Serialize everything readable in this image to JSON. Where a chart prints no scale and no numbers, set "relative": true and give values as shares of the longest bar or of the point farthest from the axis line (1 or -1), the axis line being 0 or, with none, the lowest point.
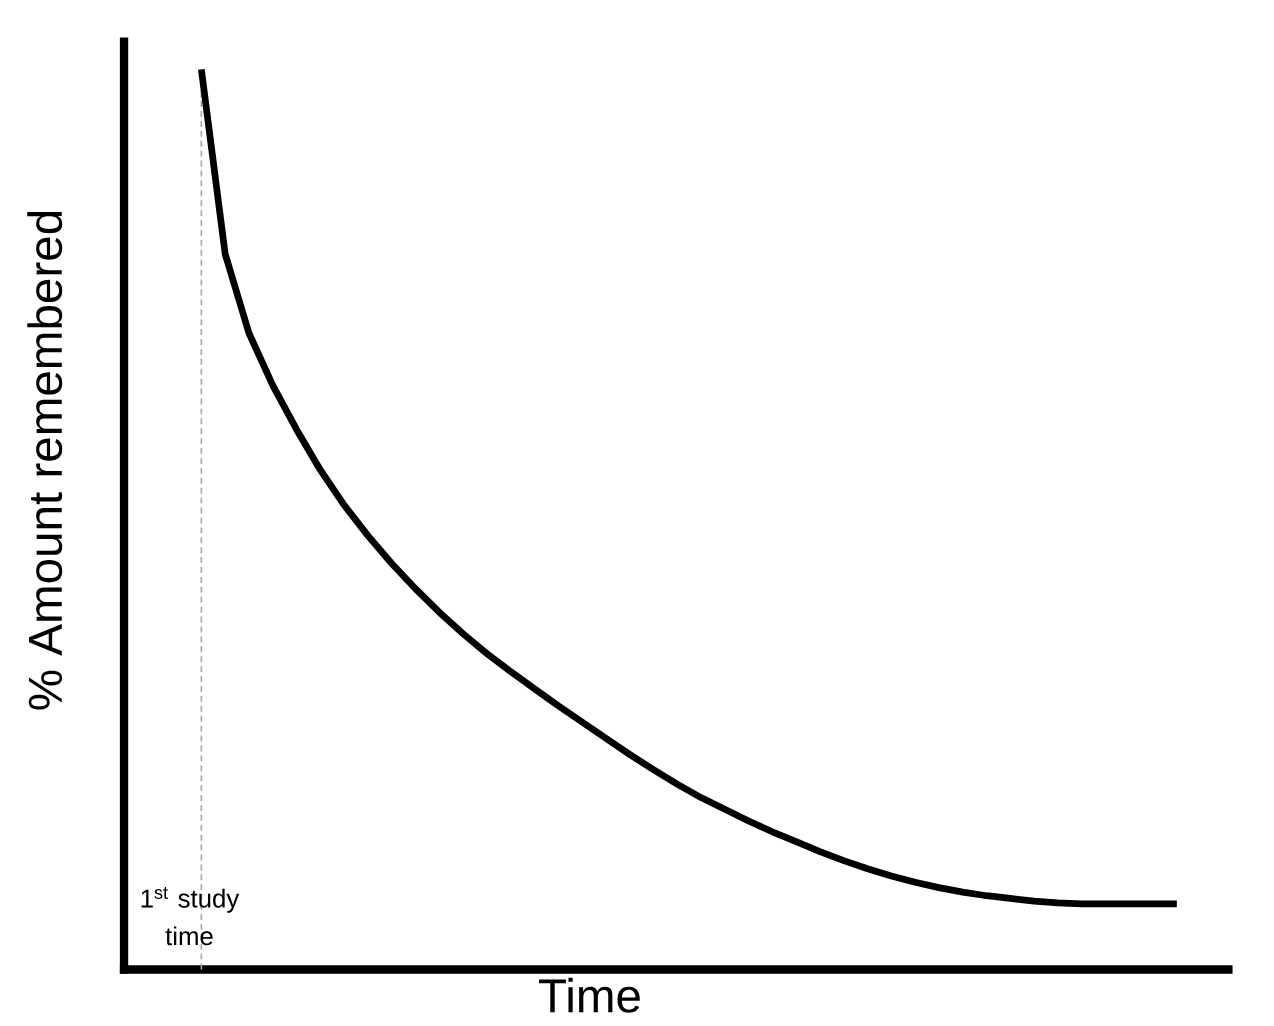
{
  "chart_data": {
    "type": "line",
    "relative": true,
    "xlabel": "Time",
    "ylabel": "% Amount remembered",
    "categories": [
      null,
      null,
      null,
      null,
      null,
      null,
      null,
      null,
      null,
      null,
      null,
      null,
      null,
      null,
      null,
      null,
      null,
      null,
      null,
      null,
      null,
      null,
      null,
      null,
      null,
      null,
      null,
      null,
      null,
      null,
      null,
      null,
      null,
      null,
      null,
      null,
      null,
      null,
      null,
      null,
      null,
      null
    ],
    "series": [
      {
        "color": "#000000",
        "values": [
          1.0,
          0.795,
          0.707,
          0.649,
          0.6,
          0.555,
          0.516,
          0.482,
          0.451,
          0.423,
          0.397,
          0.373,
          0.351,
          0.331,
          0.312,
          0.293,
          0.275,
          0.257,
          0.239,
          0.222,
          0.206,
          0.191,
          0.178,
          0.165,
          0.153,
          0.142,
          0.131,
          0.121,
          0.112,
          0.104,
          0.097,
          0.091,
          0.086,
          0.082,
          0.079,
          0.076,
          0.074,
          0.073,
          0.073,
          0.073,
          0.073,
          0.073
        ]
      }
    ],
    "annotations": [
      "1$^{st}$ study time"
    ],
    "marker": "none",
    "line_style": "solid"
  }
}
